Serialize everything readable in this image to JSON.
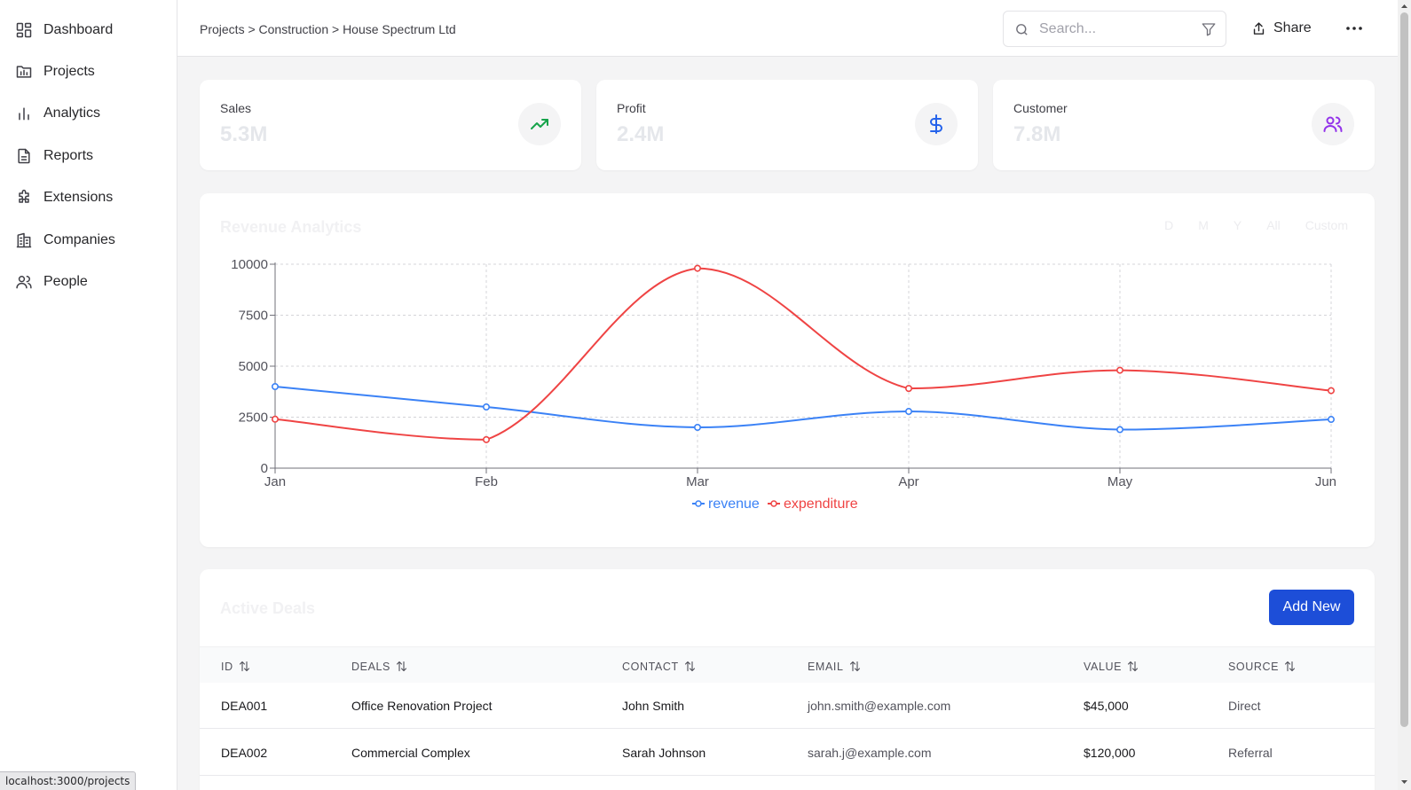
{
  "sidebar": {
    "items": [
      {
        "label": "Dashboard",
        "icon": "dashboard-icon"
      },
      {
        "label": "Projects",
        "icon": "projects-icon"
      },
      {
        "label": "Analytics",
        "icon": "analytics-icon"
      },
      {
        "label": "Reports",
        "icon": "reports-icon"
      },
      {
        "label": "Extensions",
        "icon": "extensions-icon"
      },
      {
        "label": "Companies",
        "icon": "companies-icon"
      },
      {
        "label": "People",
        "icon": "people-icon"
      }
    ]
  },
  "header": {
    "breadcrumb": "Projects > Construction > House Spectrum Ltd",
    "search_placeholder": "Search...",
    "share_label": "Share"
  },
  "stats": [
    {
      "label": "Sales",
      "value": "5.3M",
      "icon": "trending-up-icon",
      "color": "#16a34a"
    },
    {
      "label": "Profit",
      "value": "2.4M",
      "icon": "dollar-icon",
      "color": "#2563eb"
    },
    {
      "label": "Customer",
      "value": "7.8M",
      "icon": "users-icon",
      "color": "#9333ea"
    }
  ],
  "revenue": {
    "title": "Revenue Analytics",
    "ranges": [
      "D",
      "M",
      "Y",
      "All",
      "Custom"
    ]
  },
  "chart_data": {
    "type": "line",
    "title": "",
    "categories": [
      "Jan",
      "Feb",
      "Mar",
      "Apr",
      "May",
      "Jun"
    ],
    "series": [
      {
        "name": "revenue",
        "color": "#3b82f6",
        "values": [
          4000,
          3000,
          2000,
          2780,
          1890,
          2390
        ]
      },
      {
        "name": "expenditure",
        "color": "#ef4444",
        "values": [
          2400,
          1398,
          9800,
          3908,
          4800,
          3800
        ]
      }
    ],
    "yticks": [
      0,
      2500,
      5000,
      7500,
      10000
    ],
    "ylim": [
      0,
      10000
    ],
    "grid": true,
    "legend": "bottom"
  },
  "deals": {
    "title": "Active Deals",
    "add_label": "Add New",
    "columns": [
      "ID",
      "DEALS",
      "CONTACT",
      "EMAIL",
      "VALUE",
      "SOURCE"
    ],
    "rows": [
      [
        "DEA001",
        "Office Renovation Project",
        "John Smith",
        "john.smith@example.com",
        "$45,000",
        "Direct"
      ],
      [
        "DEA002",
        "Commercial Complex",
        "Sarah Johnson",
        "sarah.j@example.com",
        "$120,000",
        "Referral"
      ]
    ]
  },
  "status_bar": {
    "url": "localhost:3000/projects"
  }
}
